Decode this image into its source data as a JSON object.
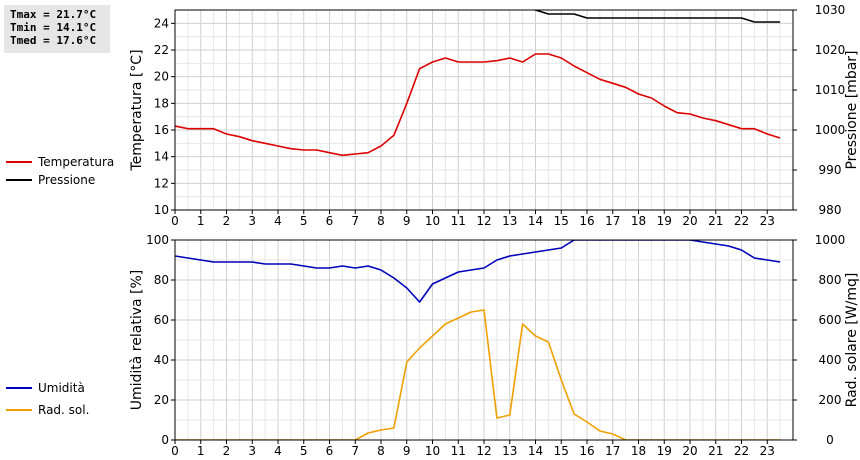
{
  "stats": {
    "tmax": "Tmax = 21.7°C",
    "tmin": "Tmin = 14.1°C",
    "tmed": "Tmed = 17.6°C"
  },
  "chart_data": [
    {
      "type": "line",
      "xticks": [
        "0",
        "1",
        "2",
        "3",
        "4",
        "5",
        "6",
        "7",
        "8",
        "9",
        "10",
        "11",
        "12",
        "13",
        "14",
        "15",
        "16",
        "17",
        "18",
        "19",
        "20",
        "21",
        "22",
        "23"
      ],
      "xlim": [
        0,
        24
      ],
      "ylabel_left": "Temperatura [°C]",
      "ylabel_right": "Pressione [mbar]",
      "ylim_left": [
        10,
        25
      ],
      "yticks_left": [
        10,
        12,
        14,
        16,
        18,
        20,
        22,
        24
      ],
      "ylim_right": [
        980,
        1030
      ],
      "yticks_right": [
        980,
        990,
        1000,
        1010,
        1020,
        1030
      ],
      "grid": true,
      "legend_placement": "left",
      "series": [
        {
          "name": "Temperatura",
          "color": "#dd0000",
          "axis": "left",
          "x": [
            0,
            0.5,
            1,
            1.5,
            2,
            2.5,
            3,
            3.5,
            4,
            4.5,
            5,
            5.5,
            6,
            6.5,
            7,
            7.5,
            8,
            8.5,
            9,
            9.5,
            10,
            10.5,
            11,
            11.5,
            12,
            12.5,
            13,
            13.5,
            14,
            14.5,
            15,
            15.5,
            16,
            16.5,
            17,
            17.5,
            18,
            18.5,
            19,
            19.5,
            20,
            20.5,
            21,
            21.5,
            22,
            22.5,
            23,
            23.5
          ],
          "y": [
            16.3,
            16.1,
            16.1,
            16.1,
            15.7,
            15.5,
            15.2,
            15.0,
            14.8,
            14.6,
            14.5,
            14.5,
            14.3,
            14.1,
            14.2,
            14.3,
            14.8,
            15.6,
            18.0,
            20.6,
            21.1,
            21.4,
            21.1,
            21.1,
            21.1,
            21.2,
            21.4,
            21.1,
            21.7,
            21.7,
            21.4,
            20.8,
            20.3,
            19.8,
            19.5,
            19.2,
            18.7,
            18.4,
            17.8,
            17.3,
            17.2,
            16.9,
            16.7,
            16.4,
            16.1,
            16.1,
            15.7,
            15.4
          ]
        },
        {
          "name": "Pressione",
          "color": "#000000",
          "axis": "right",
          "x": [
            0,
            1,
            2,
            3,
            4,
            5,
            6,
            7,
            8,
            9,
            10,
            11,
            12,
            13,
            14,
            14.5,
            15,
            15.5,
            16,
            17,
            18,
            19,
            20,
            21,
            22,
            22.5,
            23,
            23.5
          ],
          "y": [
            1032,
            1032,
            1032,
            1032,
            1032,
            1032,
            1032,
            1032,
            1032,
            1032,
            1032,
            1032,
            1032,
            1031,
            1030,
            1029,
            1029,
            1029,
            1028,
            1028,
            1028,
            1028,
            1028,
            1028,
            1028,
            1027,
            1027,
            1027
          ]
        }
      ]
    },
    {
      "type": "line",
      "xticks": [
        "0",
        "1",
        "2",
        "3",
        "4",
        "5",
        "6",
        "7",
        "8",
        "9",
        "10",
        "11",
        "12",
        "13",
        "14",
        "15",
        "16",
        "17",
        "18",
        "19",
        "20",
        "21",
        "22",
        "23"
      ],
      "xlim": [
        0,
        24
      ],
      "ylabel_left": "Umidità relativa [%]",
      "ylabel_right": "Rad. solare [W/mq]",
      "ylim_left": [
        0,
        100
      ],
      "yticks_left": [
        0,
        20,
        40,
        60,
        80,
        100
      ],
      "ylim_right": [
        0,
        1000
      ],
      "yticks_right": [
        0,
        200,
        400,
        600,
        800,
        1000
      ],
      "grid": true,
      "legend_placement": "left",
      "series": [
        {
          "name": "Umidità",
          "color": "#0000bb",
          "axis": "left",
          "x": [
            0,
            0.5,
            1,
            1.5,
            2,
            2.5,
            3,
            3.5,
            4,
            4.5,
            5,
            5.5,
            6,
            6.5,
            7,
            7.5,
            8,
            8.5,
            9,
            9.5,
            10,
            10.5,
            11,
            11.5,
            12,
            12.5,
            13,
            13.5,
            14,
            14.5,
            15,
            15.5,
            16,
            17,
            18,
            19,
            20,
            20.5,
            21,
            21.5,
            22,
            22.5,
            23,
            23.5
          ],
          "y": [
            92,
            91,
            90,
            89,
            89,
            89,
            89,
            88,
            88,
            88,
            87,
            86,
            86,
            87,
            86,
            87,
            85,
            81,
            76,
            69,
            78,
            81,
            84,
            85,
            86,
            90,
            92,
            93,
            94,
            95,
            96,
            100,
            100,
            100,
            100,
            100,
            100,
            99,
            98,
            97,
            95,
            91,
            90,
            89
          ]
        },
        {
          "name": "Rad. sol.",
          "color": "#f0a000",
          "axis": "right",
          "x": [
            0,
            1,
            2,
            3,
            4,
            5,
            6,
            7,
            7.5,
            8,
            8.5,
            9,
            9.5,
            10,
            10.5,
            11,
            11.5,
            12,
            12.5,
            13,
            13.5,
            14,
            14.5,
            15,
            15.5,
            16,
            16.5,
            17,
            17.5,
            18,
            19,
            20,
            21,
            22,
            23,
            23.5
          ],
          "y": [
            0,
            0,
            0,
            0,
            0,
            0,
            0,
            0,
            35,
            50,
            60,
            390,
            460,
            520,
            580,
            610,
            640,
            650,
            110,
            125,
            580,
            520,
            490,
            300,
            130,
            90,
            45,
            30,
            0,
            0,
            0,
            0,
            0,
            0,
            0,
            0
          ]
        }
      ]
    }
  ]
}
